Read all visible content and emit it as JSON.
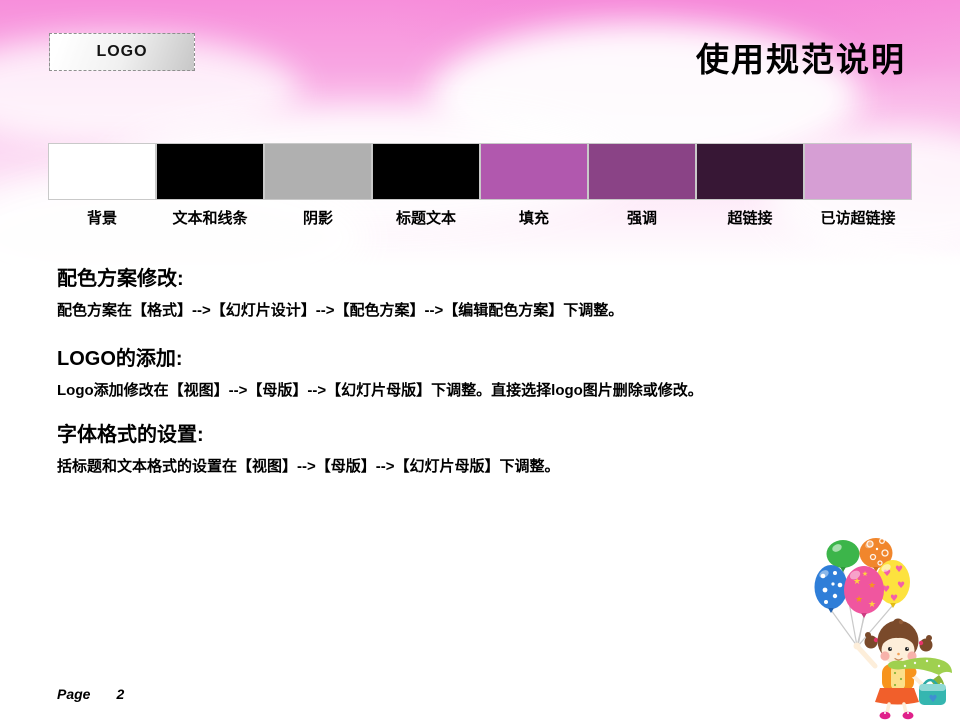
{
  "slide": {
    "logo_text": "LOGO",
    "title": "使用规范说明",
    "footer": {
      "label": "Page",
      "number": "2"
    }
  },
  "swatches": [
    {
      "label": "背景",
      "color": "#ffffff"
    },
    {
      "label": "文本和线条",
      "color": "#000000"
    },
    {
      "label": "阴影",
      "color": "#b0b0b0"
    },
    {
      "label": "标题文本",
      "color": "#000000"
    },
    {
      "label": "填充",
      "color": "#b158ae"
    },
    {
      "label": "强调",
      "color": "#8a4386"
    },
    {
      "label": "超链接",
      "color": "#371735"
    },
    {
      "label": "已访超链接",
      "color": "#d69ed4"
    }
  ],
  "sections": [
    {
      "heading": "配色方案修改:",
      "body": "配色方案在【格式】-->【幻灯片设计】-->【配色方案】-->【编辑配色方案】下调整。"
    },
    {
      "heading": "LOGO的添加:",
      "body": "Logo添加修改在【视图】-->【母版】-->【幻灯片母版】下调整。直接选择logo图片删除或修改。"
    },
    {
      "heading": "字体格式的设置:",
      "body": "括标题和文本格式的设置在【视图】-->【母版】-->【幻灯片母版】下调整。"
    }
  ]
}
